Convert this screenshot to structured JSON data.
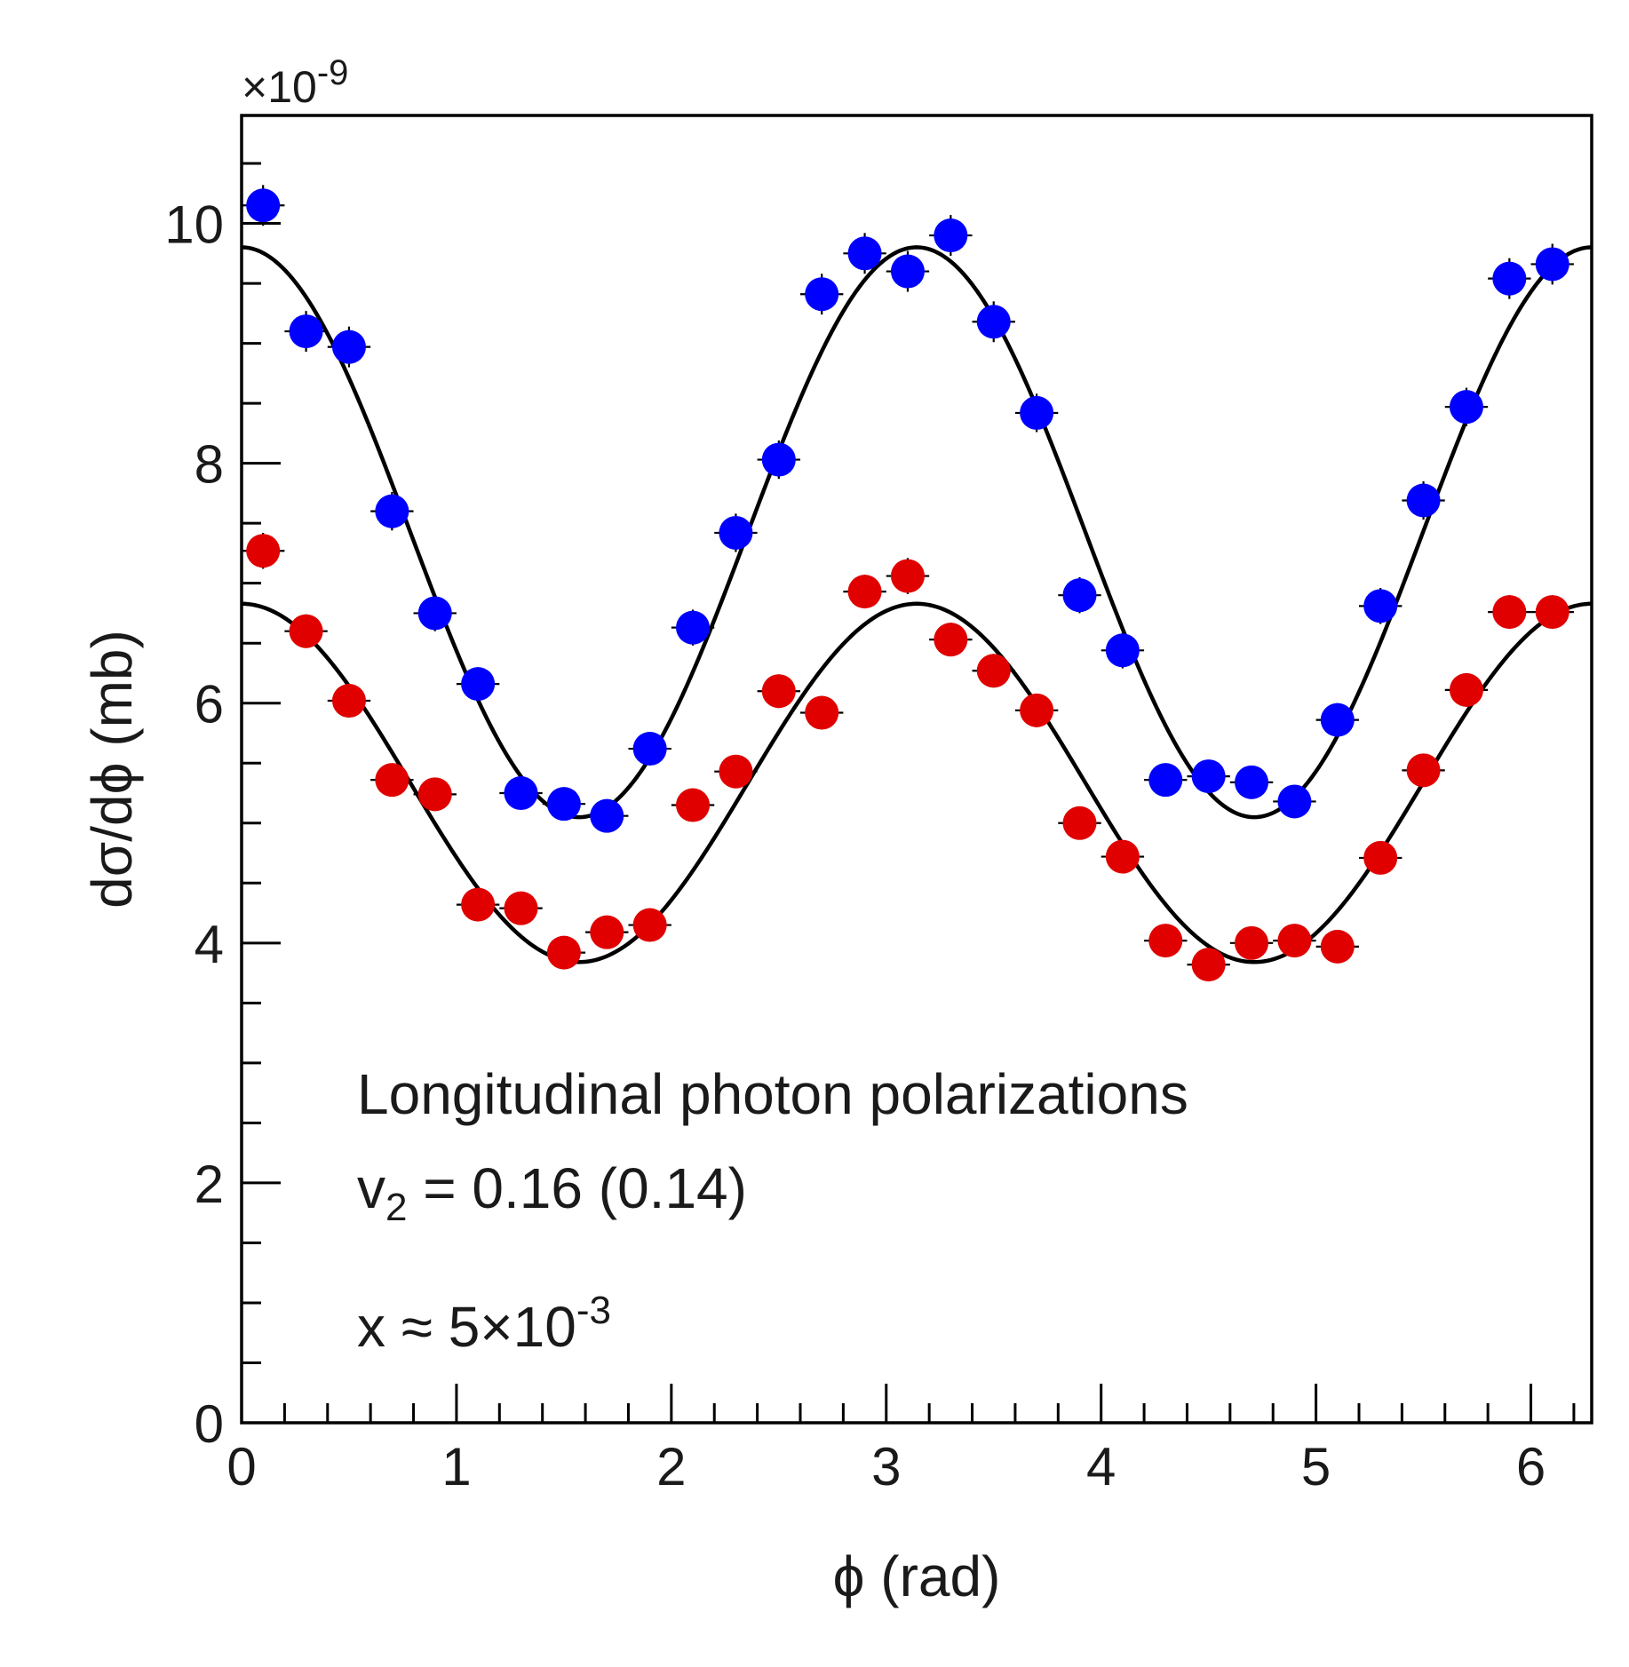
{
  "chart_data": {
    "type": "scatter",
    "title": "",
    "xlabel": "ϕ (rad)",
    "ylabel": "dσ/dϕ (mb)",
    "y_exponent": "×10",
    "y_exponent_power": "-9",
    "xlim": [
      0,
      6.283
    ],
    "ylim": [
      0,
      10.9
    ],
    "x_ticks": [
      0,
      1,
      2,
      3,
      4,
      5,
      6
    ],
    "x_tick_labels": [
      "0",
      "1",
      "2",
      "3",
      "4",
      "5",
      "6"
    ],
    "y_ticks": [
      0,
      2,
      4,
      6,
      8,
      10
    ],
    "y_tick_labels": [
      "0",
      "2",
      "4",
      "6",
      "8",
      "10"
    ],
    "grid": false,
    "annotations": {
      "line1": "Longitudinal photon polarizations",
      "line2_prefix": "v",
      "line2_sub": "2",
      "line2_suffix": " = 0.16 (0.14)",
      "line3_prefix": "x ≈ 5×10",
      "line3_sup": "-3"
    },
    "x": [
      0.1,
      0.3,
      0.5,
      0.7,
      0.9,
      1.1,
      1.3,
      1.5,
      1.7,
      1.9,
      2.1,
      2.3,
      2.5,
      2.7,
      2.9,
      3.1,
      3.3,
      3.5,
      3.7,
      3.9,
      4.1,
      4.3,
      4.5,
      4.7,
      4.9,
      5.1,
      5.3,
      5.5,
      5.7,
      5.9,
      6.1
    ],
    "series": [
      {
        "color": "#0000ff",
        "values": [
          10.15,
          9.1,
          8.97,
          7.6,
          6.75,
          6.16,
          5.25,
          5.16,
          5.06,
          5.62,
          6.63,
          7.42,
          8.03,
          9.41,
          9.75,
          9.6,
          9.9,
          9.18,
          8.42,
          6.9,
          6.44,
          5.36,
          5.39,
          5.34,
          5.18,
          5.86,
          6.81,
          7.69,
          8.47,
          9.54,
          9.66
        ],
        "errors": [
          0.17,
          0.17,
          0.17,
          0.16,
          0.15,
          0.14,
          0.13,
          0.13,
          0.13,
          0.14,
          0.15,
          0.16,
          0.16,
          0.17,
          0.17,
          0.17,
          0.17,
          0.17,
          0.16,
          0.15,
          0.15,
          0.13,
          0.13,
          0.13,
          0.13,
          0.14,
          0.15,
          0.16,
          0.16,
          0.17,
          0.17
        ]
      },
      {
        "color": "#e00000",
        "values": [
          7.27,
          6.6,
          6.02,
          5.36,
          5.24,
          4.32,
          4.29,
          3.92,
          4.09,
          4.15,
          5.15,
          5.43,
          6.1,
          5.92,
          6.93,
          7.06,
          6.53,
          6.27,
          5.94,
          5.0,
          4.72,
          4.02,
          3.82,
          4.0,
          4.02,
          3.97,
          4.71,
          5.44,
          6.11,
          6.76,
          6.76
        ],
        "errors": [
          0.15,
          0.14,
          0.14,
          0.13,
          0.13,
          0.12,
          0.12,
          0.11,
          0.12,
          0.12,
          0.13,
          0.13,
          0.14,
          0.14,
          0.14,
          0.15,
          0.14,
          0.14,
          0.14,
          0.13,
          0.12,
          0.12,
          0.11,
          0.12,
          0.12,
          0.12,
          0.12,
          0.13,
          0.14,
          0.14,
          0.14
        ]
      }
    ],
    "fits": [
      {
        "color": "#000000",
        "model": "mean*(1+2*v2*cos(2*phi))",
        "mean": 7.425,
        "v2": 0.16
      },
      {
        "color": "#000000",
        "model": "mean*(1+2*v2*cos(2*phi))",
        "mean": 5.335,
        "v2": 0.14
      }
    ]
  }
}
